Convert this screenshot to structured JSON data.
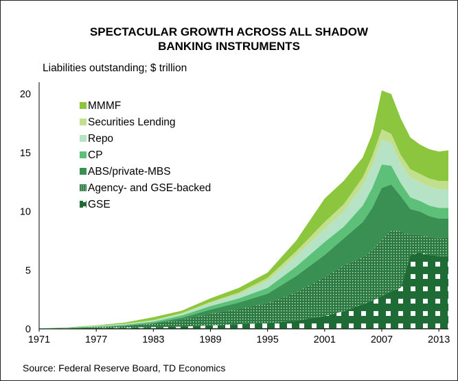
{
  "chart_data": {
    "type": "area",
    "stacked": true,
    "title_lines": [
      "SPECTACULAR GROWTH ACROSS ALL SHADOW",
      "BANKING INSTRUMENTS"
    ],
    "subtitle": "Liabilities outstanding; $ trillion",
    "source": "Source: Federal Reserve Board, TD Economics",
    "x_tick_labels": [
      "1971",
      "1977",
      "1983",
      "1989",
      "1995",
      "2001",
      "2007",
      "2013"
    ],
    "y_tick_labels": [
      "0",
      "5",
      "10",
      "15",
      "20"
    ],
    "xlim": [
      1971,
      2014
    ],
    "ylim": [
      0,
      21
    ],
    "legend_position": "top-left",
    "x": [
      1971,
      1974,
      1977,
      1980,
      1983,
      1986,
      1989,
      1992,
      1995,
      1998,
      2001,
      2003,
      2005,
      2006,
      2007,
      2008,
      2009,
      2010,
      2011,
      2012,
      2013,
      2014
    ],
    "series": [
      {
        "name": "GSE",
        "color": "#1e6b35",
        "pattern": "white-squares",
        "values": [
          0.02,
          0.04,
          0.07,
          0.1,
          0.15,
          0.2,
          0.3,
          0.4,
          0.5,
          0.7,
          1.1,
          1.5,
          2.1,
          2.4,
          2.8,
          3.2,
          3.5,
          6.3,
          6.5,
          6.3,
          6.2,
          6.2
        ]
      },
      {
        "name": "Agency- and GSE-backed",
        "color": "#2b7a3f",
        "pattern": "fine-dots",
        "values": [
          0.01,
          0.03,
          0.08,
          0.15,
          0.3,
          0.6,
          1.0,
          1.3,
          1.7,
          2.4,
          3.3,
          3.9,
          4.0,
          4.3,
          4.8,
          5.2,
          4.8,
          1.7,
          1.5,
          1.5,
          1.5,
          1.6
        ]
      },
      {
        "name": "ABS/private-MBS",
        "color": "#3a8f53",
        "pattern": "",
        "values": [
          0.0,
          0.0,
          0.01,
          0.02,
          0.05,
          0.15,
          0.35,
          0.55,
          0.8,
          1.4,
          1.9,
          2.3,
          3.0,
          3.6,
          4.4,
          3.9,
          3.0,
          2.2,
          2.0,
          1.8,
          1.7,
          1.6
        ]
      },
      {
        "name": "CP",
        "color": "#5cc079",
        "pattern": "",
        "values": [
          0.02,
          0.03,
          0.05,
          0.08,
          0.12,
          0.2,
          0.3,
          0.35,
          0.5,
          0.8,
          1.1,
          1.0,
          1.4,
          1.7,
          2.0,
          1.6,
          1.1,
          1.0,
          0.9,
          0.9,
          0.9,
          0.9
        ]
      },
      {
        "name": "Repo",
        "color": "#b6e3c5",
        "pattern": "",
        "values": [
          0.01,
          0.02,
          0.04,
          0.07,
          0.1,
          0.15,
          0.25,
          0.35,
          0.6,
          0.9,
          1.1,
          1.3,
          1.7,
          1.9,
          2.1,
          1.9,
          1.7,
          1.7,
          1.6,
          1.6,
          1.6,
          1.6
        ]
      },
      {
        "name": "Securities Lending",
        "color": "#c2df8e",
        "pattern": "",
        "values": [
          0.0,
          0.0,
          0.01,
          0.02,
          0.03,
          0.05,
          0.1,
          0.15,
          0.25,
          0.4,
          0.6,
          0.6,
          0.7,
          0.8,
          0.9,
          0.8,
          0.7,
          0.7,
          0.7,
          0.7,
          0.7,
          0.7
        ]
      },
      {
        "name": "MMMF",
        "color": "#8cc63e",
        "pattern": "",
        "values": [
          0.0,
          0.02,
          0.05,
          0.1,
          0.25,
          0.2,
          0.3,
          0.4,
          0.45,
          0.9,
          2.0,
          2.0,
          1.7,
          1.9,
          3.3,
          3.4,
          3.1,
          2.7,
          2.5,
          2.5,
          2.5,
          2.6
        ]
      }
    ]
  }
}
